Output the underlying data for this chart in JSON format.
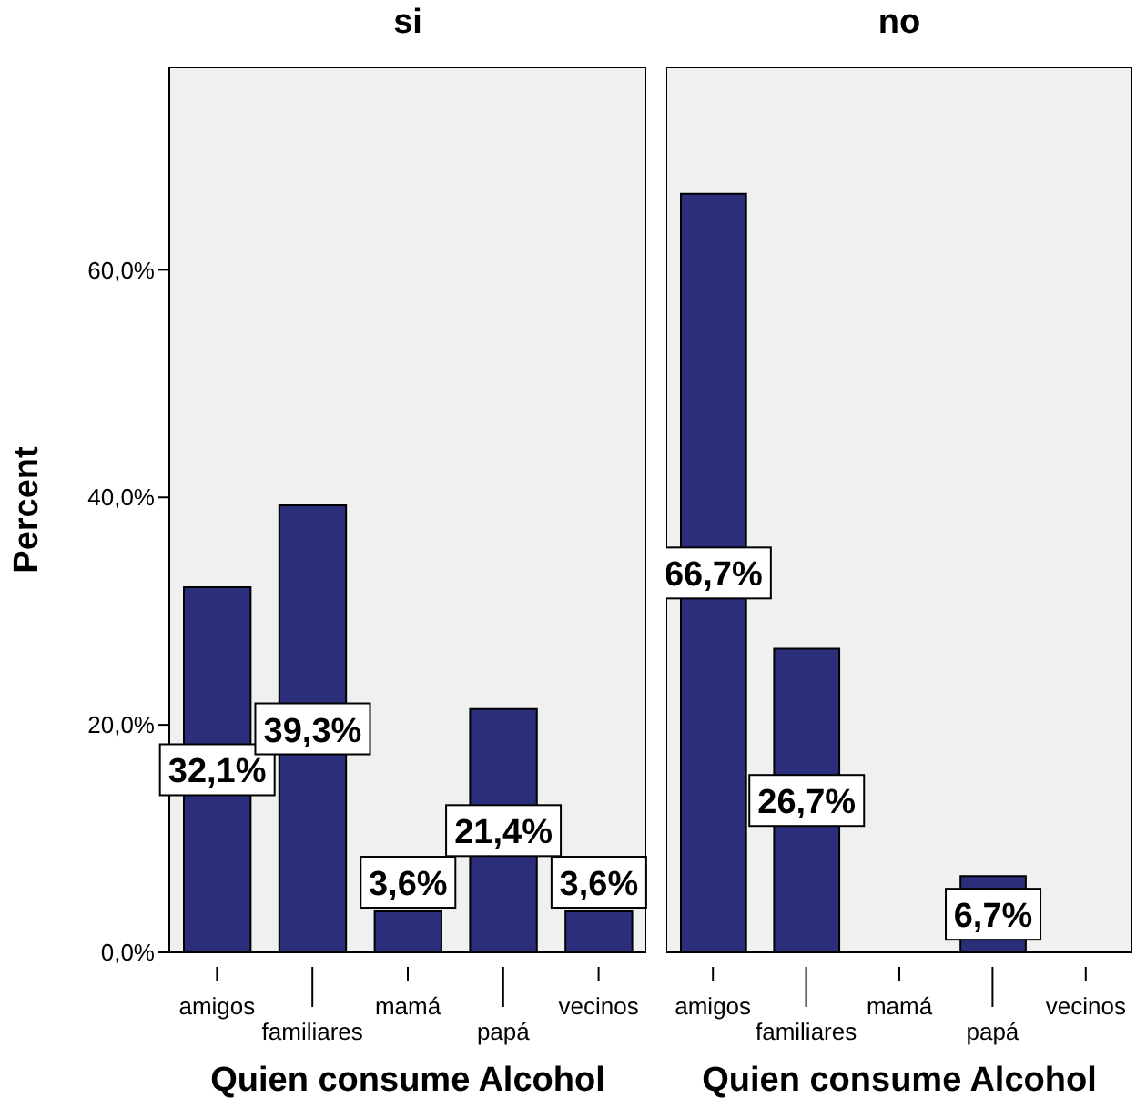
{
  "chart_data": [
    {
      "type": "bar",
      "title": "si",
      "xlabel": "Quien consume Alcohol",
      "ylabel": "Percent",
      "categories": [
        "amigos",
        "familiares",
        "mamá",
        "papá",
        "vecinos"
      ],
      "values": [
        32.1,
        39.3,
        3.6,
        21.4,
        3.6
      ],
      "color": "#2b2e7a",
      "value_labels": [
        "32,1%",
        "39,3%",
        "3,6%",
        "21,4%",
        "3,6%"
      ],
      "ylim": [
        0,
        77.8
      ],
      "yticks": [
        {
          "value": 0,
          "label": "0,0%"
        },
        {
          "value": 20,
          "label": "20,0%"
        },
        {
          "value": 40,
          "label": "40,0%"
        },
        {
          "value": 60,
          "label": "60,0%"
        }
      ]
    },
    {
      "type": "bar",
      "title": "no",
      "xlabel": "Quien consume Alcohol",
      "categories": [
        "amigos",
        "familiares",
        "mamá",
        "papá",
        "vecinos"
      ],
      "values": [
        66.7,
        26.7,
        null,
        6.7,
        null
      ],
      "color": "#2b2e7a",
      "value_labels": [
        "66,7%",
        "26,7%",
        null,
        "6,7%",
        null
      ],
      "ylim": [
        0,
        77.8
      ],
      "tick_labels": "x"
    }
  ]
}
